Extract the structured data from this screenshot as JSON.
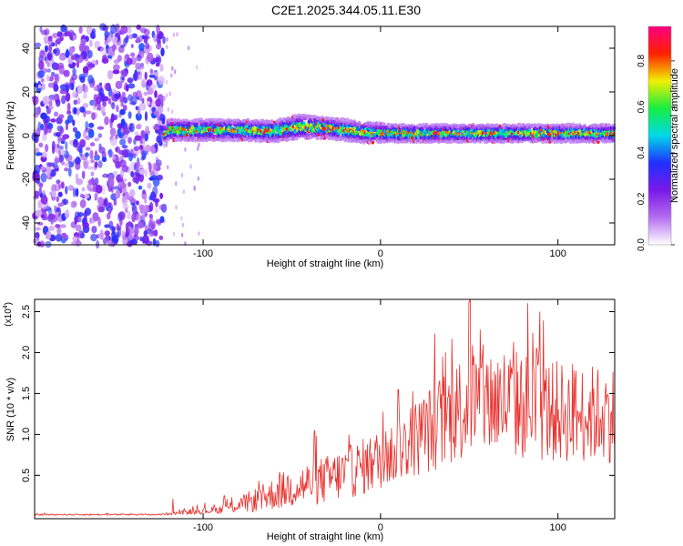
{
  "title": "C2E1.2025.344.05.11.E30",
  "chart_data": [
    {
      "type": "heatmap",
      "name": "spectrogram",
      "xlabel": "Height of straight line (km)",
      "ylabel": "Frequency (Hz)",
      "xlim": [
        -195,
        132
      ],
      "ylim": [
        -50,
        50
      ],
      "x_ticks": [
        -100,
        0,
        100
      ],
      "y_ticks": [
        -40,
        -20,
        0,
        20,
        40
      ],
      "noise_region_x": [
        -195,
        -122
      ],
      "signal_start_x": -122,
      "colorbar": {
        "label": "Normalized spectral amplitude",
        "range": [
          0,
          0.95
        ],
        "ticks": [
          0.0,
          0.2,
          0.4,
          0.6,
          0.8
        ],
        "tick_labels": [
          "0.0",
          "0.2",
          "0.4",
          "0.6",
          "0.8"
        ],
        "colors": [
          "#ffffff",
          "#b46ef0",
          "#7a18e8",
          "#2030ff",
          "#00d8e8",
          "#18ee40",
          "#f0f000",
          "#ff2000",
          "#ff0080"
        ]
      },
      "band": [
        {
          "x": -120,
          "center": 2.5,
          "width": 3.0
        },
        {
          "x": -80,
          "center": 2.5,
          "width": 3.0
        },
        {
          "x": -60,
          "center": 2.0,
          "width": 3.0
        },
        {
          "x": -45,
          "center": 4.0,
          "width": 3.5
        },
        {
          "x": -30,
          "center": 3.5,
          "width": 3.0
        },
        {
          "x": -10,
          "center": 1.5,
          "width": 3.0
        },
        {
          "x": 10,
          "center": 1.0,
          "width": 2.5
        },
        {
          "x": 40,
          "center": 1.0,
          "width": 2.5
        },
        {
          "x": 80,
          "center": 1.0,
          "width": 2.5
        },
        {
          "x": 110,
          "center": 1.0,
          "width": 2.5
        },
        {
          "x": 132,
          "center": 1.0,
          "width": 2.5
        }
      ]
    },
    {
      "type": "line",
      "name": "snr",
      "xlabel": "Height of straight line (km)",
      "ylabel": "SNR (10 * v/v)",
      "scale_label": "(x10",
      "scale_exponent": "4",
      "xlim": [
        -195,
        132
      ],
      "ylim": [
        -0.03,
        2.65
      ],
      "x_ticks": [
        -100,
        0,
        100
      ],
      "y_ticks": [
        0.5,
        1.0,
        1.5,
        2.0,
        2.5
      ],
      "y_tick_labels": [
        "0.5",
        "1.0",
        "1.5",
        "2.0",
        "2.5"
      ],
      "color": "#e8302c",
      "envelope": [
        {
          "x": -195,
          "mean": 0.02,
          "amp": 0.01
        },
        {
          "x": -125,
          "mean": 0.02,
          "amp": 0.01
        },
        {
          "x": -110,
          "mean": 0.05,
          "amp": 0.03
        },
        {
          "x": -90,
          "mean": 0.08,
          "amp": 0.05
        },
        {
          "x": -70,
          "mean": 0.2,
          "amp": 0.15
        },
        {
          "x": -50,
          "mean": 0.35,
          "amp": 0.25
        },
        {
          "x": -30,
          "mean": 0.45,
          "amp": 0.3
        },
        {
          "x": -10,
          "mean": 0.6,
          "amp": 0.35
        },
        {
          "x": 10,
          "mean": 0.8,
          "amp": 0.4
        },
        {
          "x": 30,
          "mean": 1.1,
          "amp": 0.55
        },
        {
          "x": 50,
          "mean": 1.4,
          "amp": 0.7
        },
        {
          "x": 70,
          "mean": 1.4,
          "amp": 0.7
        },
        {
          "x": 90,
          "mean": 1.3,
          "amp": 0.65
        },
        {
          "x": 110,
          "mean": 1.25,
          "amp": 0.6
        },
        {
          "x": 132,
          "mean": 1.25,
          "amp": 0.6
        }
      ],
      "annotated_peaks": [
        {
          "x": -117,
          "y": 0.21
        },
        {
          "x": -88,
          "y": 0.25
        },
        {
          "x": -37,
          "y": 1.05
        },
        {
          "x": 10,
          "y": 1.55
        },
        {
          "x": 50,
          "y": 2.62
        },
        {
          "x": 83,
          "y": 2.6
        },
        {
          "x": 88,
          "y": 2.05
        }
      ]
    }
  ]
}
